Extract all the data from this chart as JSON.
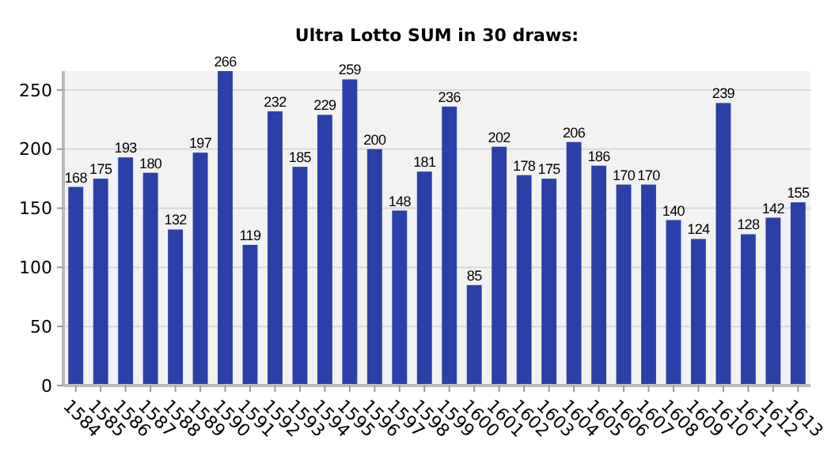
{
  "chart_data": {
    "type": "bar",
    "title": "Ultra Lotto SUM in 30 draws:",
    "categories": [
      "1584",
      "1585",
      "1586",
      "1587",
      "1588",
      "1589",
      "1590",
      "1591",
      "1592",
      "1593",
      "1594",
      "1595",
      "1596",
      "1597",
      "1598",
      "1599",
      "1600",
      "1601",
      "1602",
      "1603",
      "1604",
      "1605",
      "1606",
      "1607",
      "1608",
      "1609",
      "1610",
      "1611",
      "1612",
      "1613"
    ],
    "values": [
      168,
      175,
      193,
      180,
      132,
      197,
      266,
      119,
      232,
      185,
      229,
      259,
      200,
      148,
      181,
      236,
      85,
      202,
      178,
      175,
      206,
      186,
      170,
      170,
      140,
      124,
      239,
      128,
      142,
      155
    ],
    "color": "#2a40a8",
    "ylim": [
      0,
      266
    ],
    "yticks": [
      0,
      50,
      100,
      150,
      200,
      250
    ],
    "grid": "y",
    "data_labels": true
  }
}
